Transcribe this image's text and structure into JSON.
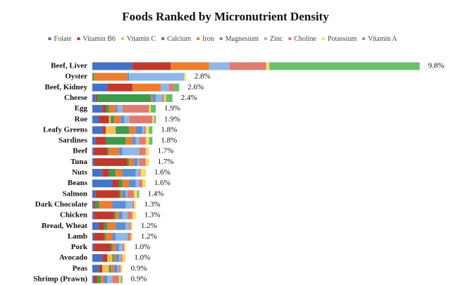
{
  "chart_data": {
    "type": "stacked-bar-horizontal",
    "title": "Foods Ranked by Micronutrient Density",
    "categories": [
      "Beef, Liver",
      "Oyster",
      "Beef, Kidney",
      "Cheese",
      "Egg",
      "Roe",
      "Leafy Greens",
      "Sardines",
      "Beef",
      "Tuna",
      "Nuts",
      "Beans",
      "Salmon",
      "Dark Chocolate",
      "Chicken",
      "Bread, Wheat",
      "Lamb",
      "Pork",
      "Avocado",
      "Peas",
      "Shrimp (Prawn)"
    ],
    "total_labels": [
      "9.8%",
      "2.8%",
      "2.6%",
      "2.4%",
      "1.9%",
      "1.9%",
      "1.8%",
      "1.8%",
      "1.7%",
      "1.7%",
      "1.6%",
      "1.6%",
      "1.4%",
      "1.3%",
      "1.3%",
      "1.2%",
      "1.2%",
      "1.0%",
      "1.0%",
      "0.9%",
      "0.9%"
    ],
    "series": [
      {
        "name": "Folate",
        "color": "#4472c4",
        "values": [
          1.2,
          0,
          0.45,
          0.1,
          0.3,
          0.2,
          0.3,
          0.1,
          0.05,
          0.05,
          0.3,
          0.6,
          0.1,
          0.05,
          0.05,
          0.2,
          0.05,
          0.05,
          0.3,
          0.2,
          0.05
        ]
      },
      {
        "name": "Vitamin B6",
        "color": "#c0392b",
        "values": [
          1.15,
          0,
          0.75,
          0.05,
          0.1,
          0.3,
          0.1,
          0.3,
          0.4,
          1.0,
          0.2,
          0.2,
          0.7,
          0.05,
          0.6,
          0.15,
          0.3,
          0.5,
          0.15,
          0.1,
          0.1
        ]
      },
      {
        "name": "Vitamin C",
        "color": "#f2c14e",
        "values": [
          0,
          0,
          0,
          0,
          0,
          0.05,
          0.3,
          0,
          0,
          0,
          0,
          0,
          0,
          0,
          0,
          0,
          0,
          0,
          0.15,
          0.2,
          0
        ]
      },
      {
        "name": "Calcium",
        "color": "#3e9a4a",
        "values": [
          0,
          0.05,
          0,
          1.6,
          0.1,
          0.1,
          0.4,
          0.6,
          0.05,
          0.05,
          0.2,
          0.1,
          0.05,
          0.1,
          0.05,
          0.1,
          0.05,
          0.05,
          0.05,
          0.05,
          0.1
        ]
      },
      {
        "name": "Iron",
        "color": "#ed7d31",
        "values": [
          1.15,
          1.0,
          0.85,
          0.05,
          0.2,
          0.2,
          0.2,
          0.2,
          0.3,
          0.15,
          0.2,
          0.2,
          0.05,
          0.4,
          0.1,
          0.25,
          0.2,
          0.1,
          0.05,
          0.1,
          0.1
        ]
      },
      {
        "name": "Magnesium",
        "color": "#5a8fd6",
        "values": [
          0,
          0.05,
          0,
          0.1,
          0.05,
          0.1,
          0.2,
          0.1,
          0.1,
          0.1,
          0.4,
          0.2,
          0.1,
          0.4,
          0.1,
          0.3,
          0.1,
          0.1,
          0.1,
          0.1,
          0.1
        ]
      },
      {
        "name": "Zinc",
        "color": "#8fb8e8",
        "values": [
          0.6,
          1.65,
          0.25,
          0.2,
          0.15,
          0.15,
          0.05,
          0.1,
          0.5,
          0.05,
          0.1,
          0.1,
          0.05,
          0.2,
          0.15,
          0.1,
          0.35,
          0.1,
          0.05,
          0.05,
          0.15
        ]
      },
      {
        "name": "Choline",
        "color": "#e07b72",
        "values": [
          1.1,
          0,
          0.15,
          0.05,
          0.8,
          0.7,
          0.05,
          0.2,
          0.2,
          0.2,
          0.05,
          0.1,
          0.2,
          0.05,
          0.15,
          0.05,
          0.1,
          0.05,
          0.05,
          0.05,
          0.2
        ]
      },
      {
        "name": "Potassium",
        "color": "#ffd966",
        "values": [
          0.1,
          0.05,
          0,
          0.05,
          0.05,
          0.05,
          0.1,
          0.1,
          0.1,
          0.1,
          0.15,
          0.1,
          0.1,
          0.05,
          0.1,
          0.05,
          0.05,
          0.05,
          0.1,
          0.05,
          0.05
        ]
      },
      {
        "name": "Vitamin A",
        "color": "#6cbf6a",
        "values": [
          4.5,
          0,
          0.15,
          0.2,
          0.15,
          0.05,
          0.1,
          0.1,
          0,
          0,
          0,
          0,
          0.05,
          0,
          0,
          0,
          0,
          0,
          0,
          0,
          0.05
        ]
      }
    ]
  }
}
